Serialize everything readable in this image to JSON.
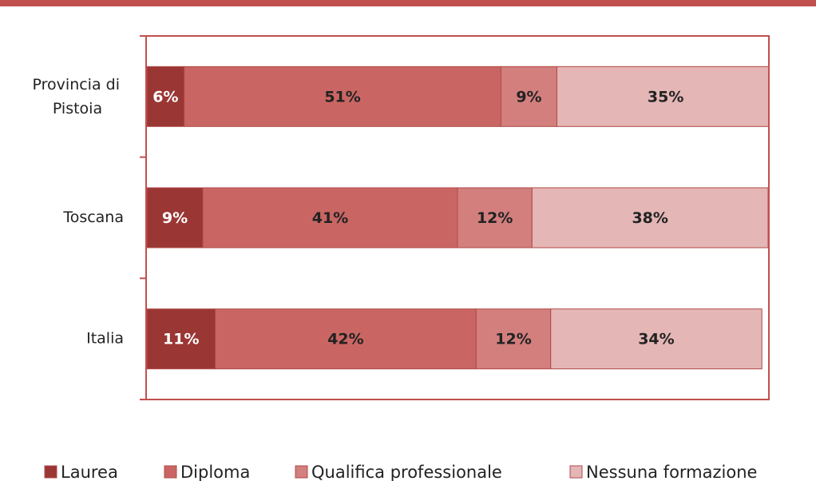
{
  "chart_data": {
    "type": "stacked-bar-horizontal",
    "categories": [
      "Provincia di Pistoia",
      "Toscana",
      "Italia"
    ],
    "series": [
      {
        "name": "Laurea",
        "color": "#9a3634",
        "label_color": "#ffffff",
        "values": [
          6,
          9,
          11
        ],
        "value_labels": [
          "6%",
          "9%",
          "11%"
        ]
      },
      {
        "name": "Diploma",
        "color": "#c96663",
        "label_color": "#222222",
        "values": [
          51,
          41,
          42
        ],
        "value_labels": [
          "51%",
          "41%",
          "42%"
        ]
      },
      {
        "name": "Qualifica professionale",
        "color": "#d27f7d",
        "label_color": "#222222",
        "values": [
          9,
          12,
          12
        ],
        "value_labels": [
          "9%",
          "12%",
          "12%"
        ]
      },
      {
        "name": "Nessuna formazione",
        "color": "#e4b6b5",
        "label_color": "#222222",
        "values": [
          35,
          38,
          34
        ],
        "value_labels": [
          "35%",
          "38%",
          "34%"
        ]
      }
    ],
    "xlim": [
      0,
      100
    ],
    "legend": "bottom"
  }
}
